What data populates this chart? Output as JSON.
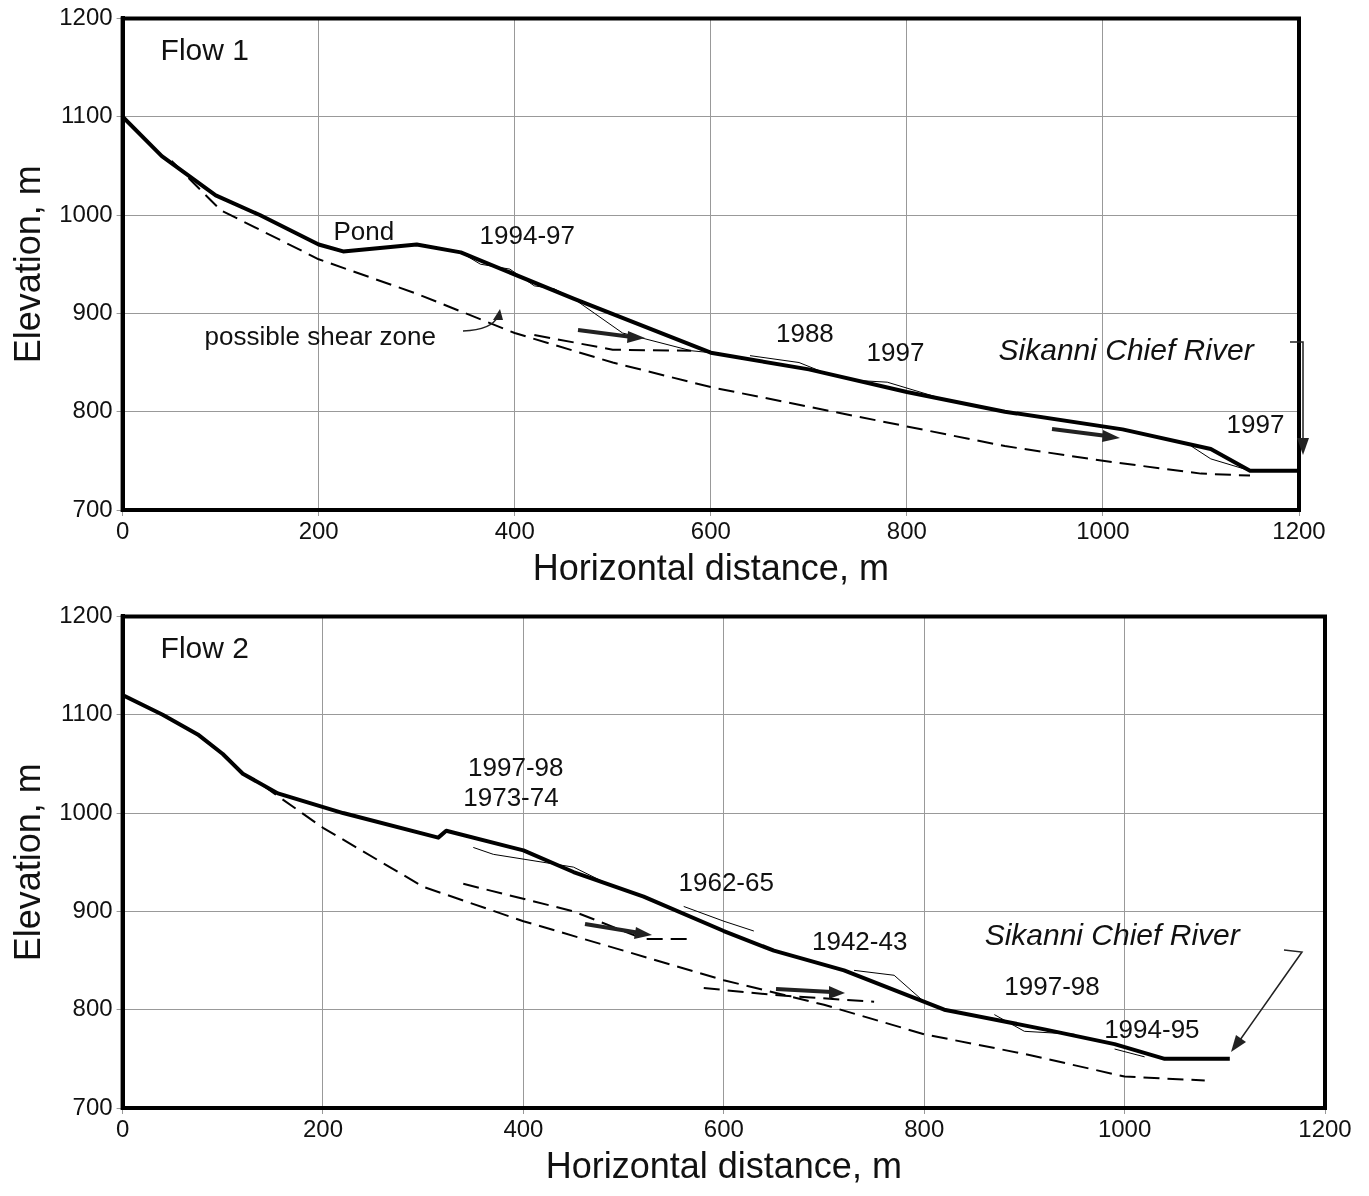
{
  "chart_data": [
    {
      "type": "line",
      "title": "Flow 1",
      "xlabel": "Horizontal distance, m",
      "ylabel": "Elevation, m",
      "xlim": [
        0,
        1200
      ],
      "xticks": [
        0,
        200,
        400,
        600,
        800,
        1000,
        1200
      ],
      "ylim": [
        700,
        1200
      ],
      "yticks": [
        700,
        800,
        900,
        1000,
        1100,
        1200
      ],
      "grid": true,
      "legend": false,
      "marker": "none",
      "series": [
        {
          "color": "#000000",
          "line_style": "solid",
          "x": [
            0,
            40,
            95,
            140,
            200,
            225,
            300,
            345,
            460,
            600,
            700,
            800,
            900,
            1020,
            1110,
            1150,
            1200
          ],
          "values": [
            1100,
            1060,
            1020,
            1000,
            970,
            963,
            970,
            962,
            915,
            860,
            843,
            820,
            800,
            782,
            762,
            740,
            740
          ]
        },
        {
          "color": "#000000",
          "line_style": "dashed",
          "x": [
            50,
            100,
            200,
            300,
            400,
            500,
            600,
            700,
            800,
            900,
            1000,
            1100,
            1150
          ],
          "values": [
            1055,
            1005,
            955,
            920,
            880,
            850,
            825,
            805,
            785,
            765,
            750,
            737,
            735
          ]
        },
        {
          "color": "#000000",
          "line_style": "dashed",
          "x": [
            420,
            500,
            580
          ],
          "values": [
            878,
            863,
            862
          ]
        },
        {
          "color": "#000000",
          "line_style": "solid",
          "x": [
            345,
            365,
            395,
            420,
            440,
            460,
            510,
            580,
            600,
            610,
            640,
            690,
            720,
            730,
            745,
            780,
            830,
            840,
            1090,
            1110,
            1150
          ],
          "values": [
            962,
            950,
            945,
            928,
            925,
            915,
            880,
            862,
            860,
            null,
            857,
            850,
            838,
            null,
            832,
            830,
            815,
            null,
            765,
            752,
            740
          ]
        }
      ],
      "annotations": [
        "Pond",
        "1994-97",
        "possible shear zone",
        "1988",
        "1997",
        "Sikanni Chief River",
        "1997"
      ]
    },
    {
      "type": "line",
      "title": "Flow 2",
      "xlabel": "Horizontal distance, m",
      "ylabel": "Elevation, m",
      "xlim": [
        0,
        1200
      ],
      "xticks": [
        0,
        200,
        400,
        600,
        800,
        1000,
        1200
      ],
      "ylim": [
        700,
        1200
      ],
      "yticks": [
        700,
        800,
        900,
        1000,
        1100,
        1200
      ],
      "grid": true,
      "legend": false,
      "marker": "none",
      "series": [
        {
          "color": "#000000",
          "line_style": "solid",
          "x": [
            0,
            40,
            75,
            100,
            120,
            155,
            220,
            315,
            323,
            400,
            450,
            520,
            600,
            650,
            720,
            820,
            920,
            990,
            1040,
            1105
          ],
          "values": [
            1120,
            1100,
            1080,
            1060,
            1040,
            1020,
            1000,
            975,
            982,
            962,
            940,
            915,
            880,
            860,
            840,
            800,
            780,
            765,
            750,
            750
          ]
        },
        {
          "color": "#000000",
          "line_style": "dashed",
          "x": [
            140,
            200,
            300,
            400,
            500,
            600,
            700,
            800,
            900,
            1000,
            1080
          ],
          "values": [
            1028,
            985,
            925,
            890,
            860,
            830,
            805,
            775,
            755,
            732,
            728
          ]
        },
        {
          "color": "#000000",
          "line_style": "dashed",
          "x": [
            340,
            450,
            520,
            565
          ],
          "values": [
            928,
            900,
            872,
            872
          ]
        },
        {
          "color": "#000000",
          "line_style": "dashed",
          "x": [
            580,
            650,
            750
          ],
          "values": [
            822,
            815,
            808
          ]
        },
        {
          "color": "#000000",
          "line_style": "solid",
          "x": [
            350,
            370,
            450,
            480,
            500,
            560,
            600,
            630,
            650,
            730,
            770,
            800,
            820,
            870,
            900,
            950,
            960,
            990,
            1020
          ],
          "values": [
            965,
            958,
            945,
            930,
            null,
            905,
            890,
            880,
            null,
            840,
            835,
            808,
            null,
            795,
            778,
            775,
            null,
            760,
            752
          ]
        }
      ],
      "annotations": [
        "1997-98",
        "1973-74",
        "1962-65",
        "1942-43",
        "Sikanni Chief River",
        "1997-98",
        "1994-95"
      ]
    }
  ]
}
